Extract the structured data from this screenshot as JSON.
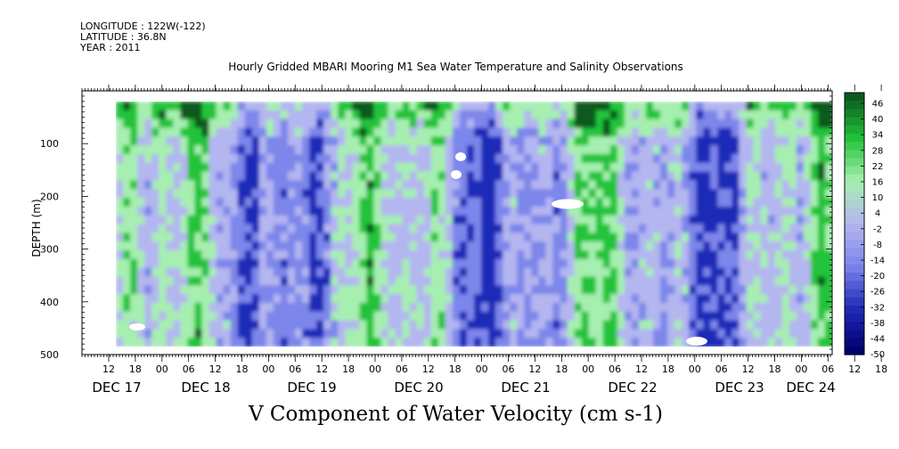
{
  "header": {
    "longitude": "LONGITUDE : 122W(-122)",
    "latitude": "LATITUDE : 36.8N",
    "year": "YEAR : 2011",
    "title": "Hourly Gridded MBARI Mooring M1 Sea Water Temperature and Salinity Observations",
    "variable": "V Component of Water Velocity (cm s-1)"
  },
  "chart_data": {
    "type": "heatmap",
    "title": "Hourly Gridded MBARI Mooring M1 Sea Water Temperature and Salinity Observations",
    "xlabel": "",
    "ylabel": "DEPTH (m)",
    "variable": "V Component of Water Velocity (cm s-1)",
    "ylim": [
      500,
      0
    ],
    "y_ticks": [
      100,
      200,
      300,
      400,
      500
    ],
    "x_hour_ticks": [
      "12",
      "18",
      "00",
      "06",
      "12",
      "18",
      "00",
      "06",
      "12",
      "18",
      "00",
      "06",
      "12",
      "18",
      "00",
      "06",
      "12",
      "18",
      "00",
      "06",
      "12",
      "18",
      "00",
      "06",
      "12",
      "18",
      "00",
      "06",
      "12",
      "18",
      "00",
      "06"
    ],
    "x_date_labels": [
      "DEC 17",
      "DEC 18",
      "DEC 19",
      "DEC 20",
      "DEC 21",
      "DEC 22",
      "DEC 23",
      "DEC 24"
    ],
    "colorbar_levels": [
      "46",
      "40",
      "34",
      "28",
      "22",
      "16",
      "10",
      "4",
      "-2",
      "-8",
      "-14",
      "-20",
      "-26",
      "-32",
      "-38",
      "-44",
      "-50"
    ],
    "colors": {
      "strong_pos": "#0a5a1e",
      "pos": "#22c33a",
      "weak_pos": "#a6efb0",
      "weak_neg": "#b4b6f0",
      "neg": "#7d86ea",
      "strong_neg": "#1f2ab8",
      "most_neg": "#000070"
    }
  }
}
